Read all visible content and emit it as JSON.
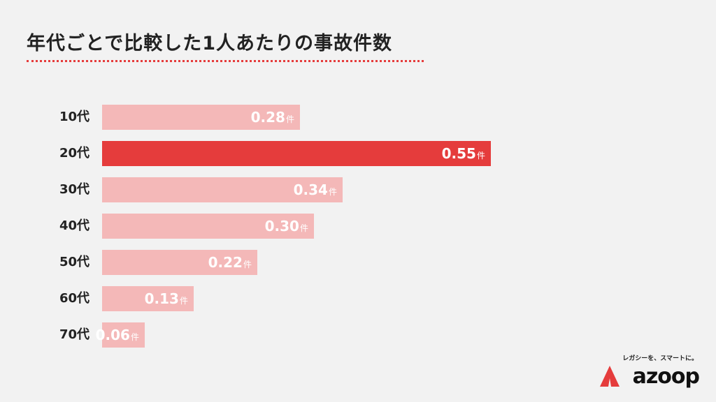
{
  "chart_data": {
    "type": "bar",
    "orientation": "horizontal",
    "title": "年代ごとで比較した1人あたりの事故件数",
    "categories": [
      "10代",
      "20代",
      "30代",
      "40代",
      "50代",
      "60代",
      "70代"
    ],
    "values": [
      0.28,
      0.55,
      0.34,
      0.3,
      0.22,
      0.13,
      0.06
    ],
    "value_labels": [
      "0.28",
      "0.55",
      "0.34",
      "0.30",
      "0.22",
      "0.13",
      "0.06"
    ],
    "unit": "件",
    "highlight_category": "20代",
    "colors": {
      "bar": "#f4b8b8",
      "highlight": "#e53c3c",
      "accent": "#e53c3c"
    },
    "grid": false,
    "legend": "none"
  },
  "brand": {
    "tagline": "レガシーを、スマートに。",
    "wordmark": "azoop",
    "logo_icon": "red-triangle-icon"
  }
}
